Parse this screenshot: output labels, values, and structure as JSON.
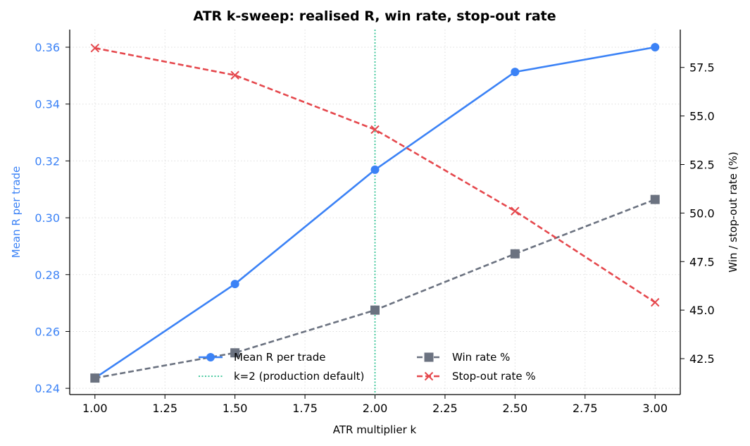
{
  "chart_data": {
    "type": "line",
    "title": "ATR k-sweep: realised R, win rate, stop-out rate",
    "xlabel": "ATR multiplier k",
    "ylabel_left": "Mean R per trade",
    "ylabel_right": "Win / stop-out rate (%)",
    "xlim": [
      0.91,
      3.09
    ],
    "ylim_left": [
      0.2378,
      0.3662
    ],
    "ylim_right": [
      40.65,
      59.45
    ],
    "x_ticks": [
      "1.00",
      "1.25",
      "1.50",
      "1.75",
      "2.00",
      "2.25",
      "2.50",
      "2.75",
      "3.00"
    ],
    "y_left_ticks": [
      "0.24",
      "0.26",
      "0.28",
      "0.30",
      "0.32",
      "0.34",
      "0.36"
    ],
    "y_right_ticks": [
      "42.5",
      "45.0",
      "47.5",
      "50.0",
      "52.5",
      "55.0",
      "57.5"
    ],
    "grid": true,
    "legend_position": "lower center",
    "x": [
      1.0,
      1.5,
      2.0,
      2.5,
      3.0
    ],
    "series": [
      {
        "name": "Mean R per trade",
        "axis": "left",
        "color": "#3b82f6",
        "style": "solid",
        "marker": "circle",
        "values": [
          0.2436,
          0.2767,
          0.3169,
          0.3513,
          0.36
        ]
      },
      {
        "name": "Win rate %",
        "axis": "right",
        "color": "#6b7280",
        "style": "dashed",
        "marker": "square",
        "values": [
          41.5,
          42.8,
          45.0,
          47.9,
          50.7
        ]
      },
      {
        "name": "Stop-out rate %",
        "axis": "right",
        "color": "#e5484d",
        "style": "dashed",
        "marker": "x",
        "values": [
          58.5,
          57.1,
          54.3,
          50.1,
          45.4
        ]
      }
    ],
    "reference_line": {
      "label": "k=2 (production default)",
      "x": 2.0,
      "color": "#10b981",
      "style": "dotted"
    }
  }
}
